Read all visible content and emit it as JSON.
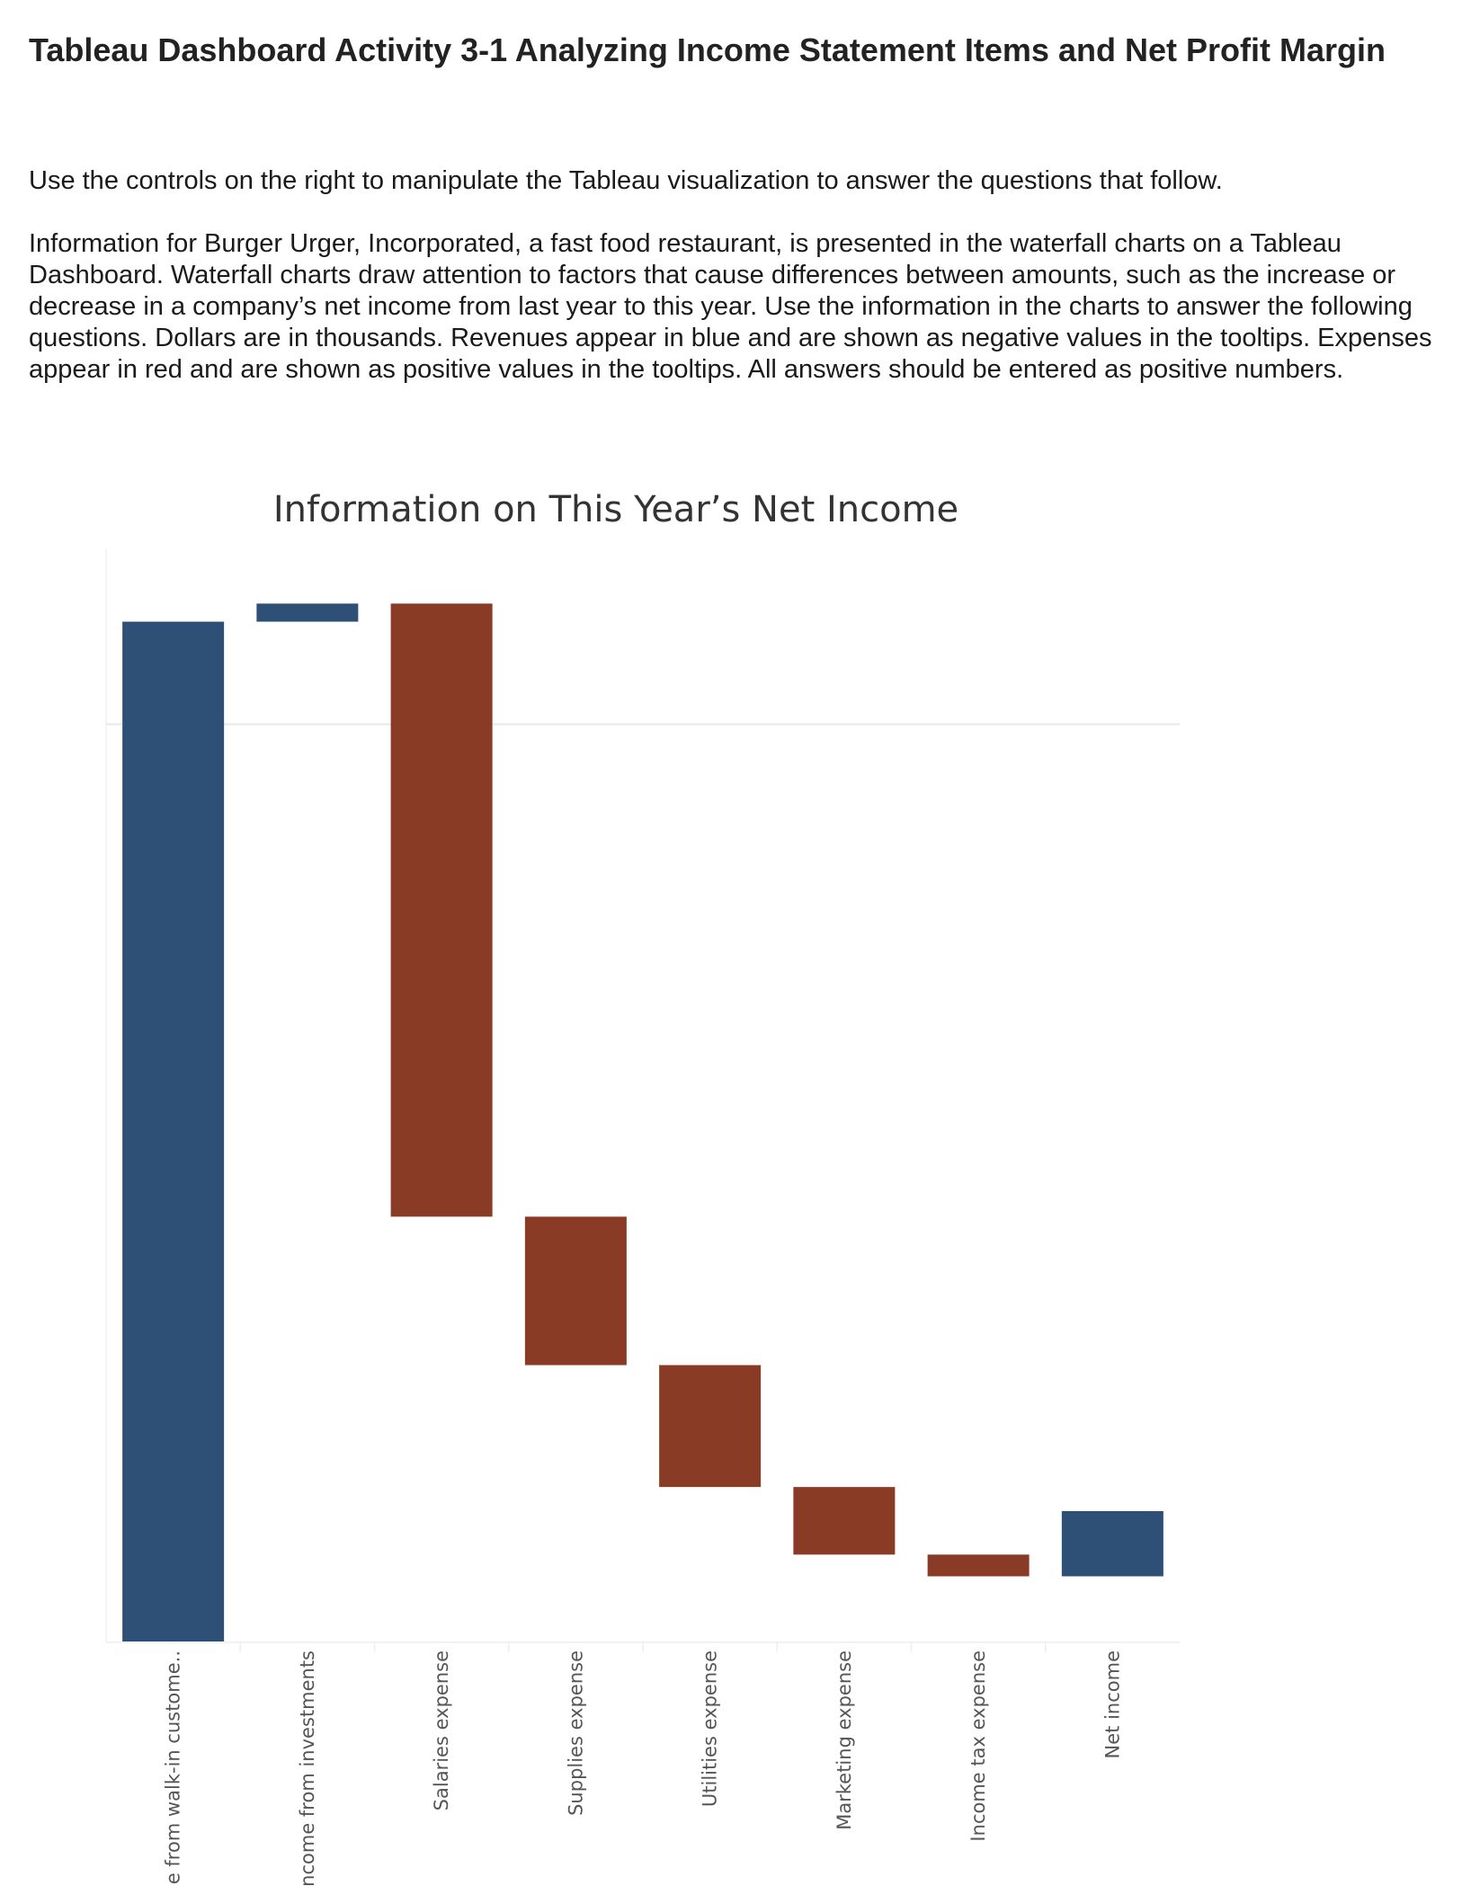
{
  "header": {
    "title": "Tableau Dashboard Activity 3-1 Analyzing Income Statement Items and Net Profit Margin",
    "instruction": "Use the controls on the right to manipulate the Tableau visualization to answer the questions that follow.",
    "description": "Information for Burger Urger, Incorporated, a fast food restaurant, is presented in the waterfall charts on a Tableau Dashboard. Waterfall charts draw attention to factors that cause differences between amounts, such as the increase or decrease in a company’s net income from last year to this year. Use the information in the charts to answer the following questions. Dollars are in thousands. Revenues appear in blue and are shown as negative values in the tooltips. Expenses appear in red and are shown as positive values in the tooltips. All answers should be entered as positive numbers."
  },
  "chart_data": {
    "type": "bar",
    "subtype": "waterfall",
    "title": "Information on This Year’s Net Income",
    "xlabel": "",
    "ylabel": "",
    "ylim": [
      0,
      905
    ],
    "gridline_value": 760,
    "categories": [
      "Revenue from walk-in custome..",
      "Income from investments",
      "Salaries expense",
      "Supplies expense",
      "Utilities expense",
      "Marketing expense",
      "Income tax expense",
      "Net income"
    ],
    "bars": [
      {
        "start": 0,
        "end": 845,
        "kind": "revenue"
      },
      {
        "start": 845,
        "end": 860,
        "kind": "revenue"
      },
      {
        "start": 860,
        "end": 352,
        "kind": "expense"
      },
      {
        "start": 352,
        "end": 229,
        "kind": "expense"
      },
      {
        "start": 229,
        "end": 128,
        "kind": "expense"
      },
      {
        "start": 128,
        "end": 72,
        "kind": "expense"
      },
      {
        "start": 72,
        "end": 54,
        "kind": "expense"
      },
      {
        "start": 54,
        "end": 108,
        "kind": "revenue"
      }
    ],
    "colors": {
      "revenue": "#2e5077",
      "expense": "#8a3b25",
      "grid": "#e8e8e8",
      "label": "#555555",
      "title": "#333333"
    }
  }
}
